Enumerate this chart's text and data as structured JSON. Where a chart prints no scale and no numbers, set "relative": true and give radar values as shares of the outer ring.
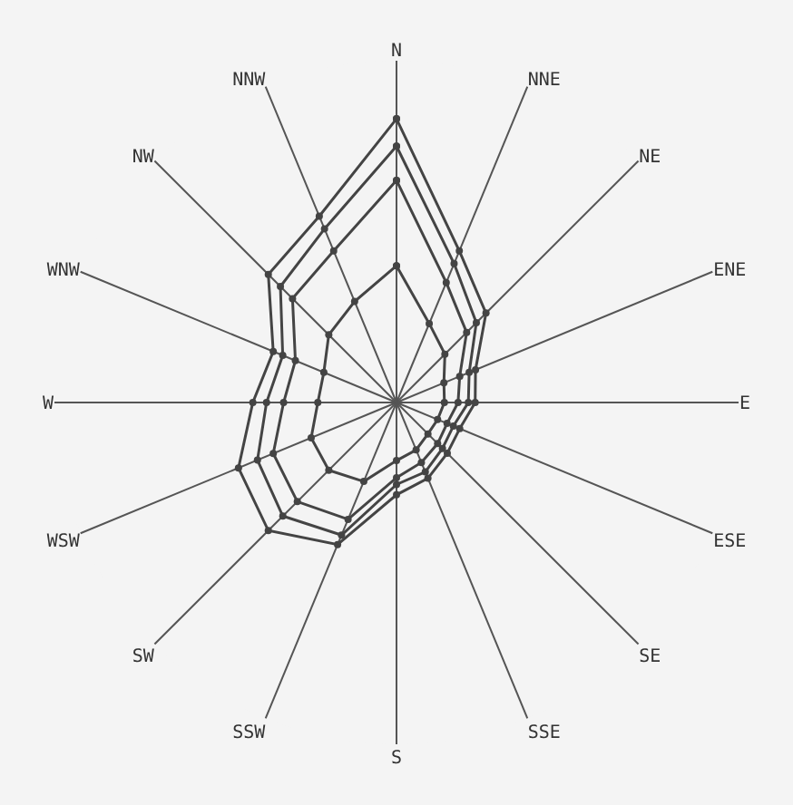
{
  "chart_data": {
    "type": "radar",
    "relative": true,
    "grid": "x",
    "marker": "circle",
    "line_style": "solid",
    "categories": [
      "N",
      "NNE",
      "NE",
      "ENE",
      "E",
      "ESE",
      "SE",
      "SSE",
      "S",
      "SSW",
      "SW",
      "WSW",
      "W",
      "WNW",
      "NW",
      "NNW"
    ],
    "series": [
      {
        "color": "#444444",
        "values": [
          0.83,
          0.48,
          0.37,
          0.25,
          0.23,
          0.2,
          0.21,
          0.24,
          0.27,
          0.45,
          0.53,
          0.5,
          0.42,
          0.39,
          0.53,
          0.59
        ]
      },
      {
        "color": "#444444",
        "values": [
          0.75,
          0.44,
          0.33,
          0.23,
          0.21,
          0.18,
          0.19,
          0.22,
          0.24,
          0.42,
          0.47,
          0.44,
          0.38,
          0.36,
          0.48,
          0.55
        ]
      },
      {
        "color": "#444444",
        "values": [
          0.65,
          0.38,
          0.29,
          0.2,
          0.18,
          0.16,
          0.17,
          0.19,
          0.22,
          0.37,
          0.41,
          0.39,
          0.33,
          0.32,
          0.43,
          0.48
        ]
      },
      {
        "color": "#444444",
        "values": [
          0.4,
          0.25,
          0.2,
          0.15,
          0.14,
          0.13,
          0.13,
          0.15,
          0.17,
          0.25,
          0.28,
          0.27,
          0.23,
          0.23,
          0.28,
          0.32
        ]
      }
    ]
  }
}
